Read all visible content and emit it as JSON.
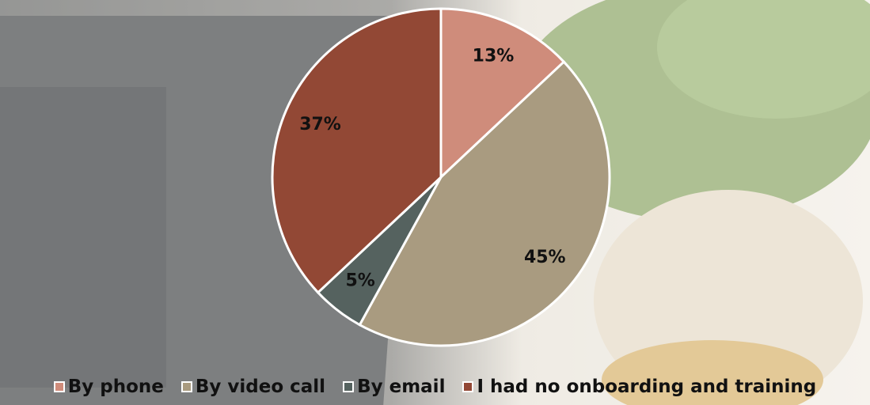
{
  "chart_data": {
    "type": "pie",
    "categories": [
      "By phone",
      "By video call",
      "By email",
      "I had no onboarding and training"
    ],
    "values": [
      13,
      45,
      5,
      37
    ],
    "value_labels": [
      "13%",
      "45%",
      "5%",
      "37%"
    ],
    "colors": [
      "#cf8c7b",
      "#a99b80",
      "#55625f",
      "#924835"
    ]
  }
}
